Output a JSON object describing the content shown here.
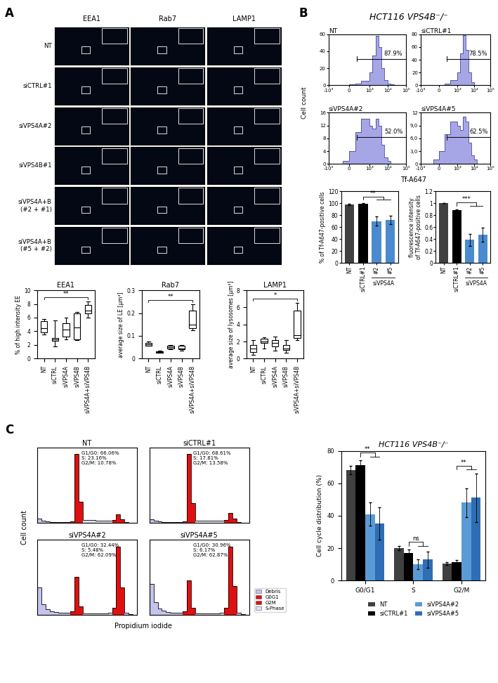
{
  "panel_labels": [
    "A",
    "B",
    "C"
  ],
  "texts": {
    "B_title": "HCT116 VPS4B⁻/⁻",
    "B_ylabel": "Cell count",
    "B_bar_title": "Tf-A647",
    "C_xlabel": "Propidium iodide",
    "C_ylabel": "Cell count"
  },
  "image_grid": {
    "columns": [
      "EEA1",
      "Rab7",
      "LAMP1"
    ],
    "rows": [
      "NT",
      "siCTRL#1",
      "siVPS4A#2",
      "siVPS4B#1",
      "siVPS4A+B\n(#2 + #1)",
      "siVPS4A+B\n(#5 + #2)"
    ]
  },
  "c_hist_legend": [
    {
      "name": "Debris",
      "color": "#c4c4ee"
    },
    {
      "name": "G0G1",
      "color": "#e01010"
    },
    {
      "name": "G2M",
      "color": "#e01010"
    },
    {
      "name": "S-Phase",
      "color": "#dfe4f4"
    }
  ],
  "chart_data": [
    {
      "type": "box",
      "title": "EEA1",
      "ylabel": "% of high intensity EE",
      "color": "#000000",
      "categories": [
        "NT",
        "siCTRL",
        "siVPS4A",
        "siVPS4B",
        "siVPS4A+siVPS4B"
      ],
      "boxes": [
        {
          "whislo": 3.5,
          "q1": 3.8,
          "med": 4.5,
          "q3": 5.5,
          "whishi": 5.8
        },
        {
          "whislo": 1.8,
          "q1": 2.6,
          "med": 2.8,
          "q3": 3.0,
          "whishi": 5.6
        },
        {
          "whislo": 2.8,
          "q1": 3.2,
          "med": 4.2,
          "q3": 5.2,
          "whishi": 6.0
        },
        {
          "whislo": 2.7,
          "q1": 2.8,
          "med": 4.6,
          "q3": 6.6,
          "whishi": 6.8
        },
        {
          "whislo": 6.0,
          "q1": 6.6,
          "med": 7.0,
          "q3": 7.8,
          "whishi": 8.4
        }
      ],
      "ylim": [
        0,
        10
      ],
      "yticks": [
        0,
        2,
        4,
        6,
        8,
        10
      ],
      "significance": {
        "label": "**",
        "from": "NT",
        "to": "siVPS4A+siVPS4B"
      }
    },
    {
      "type": "box",
      "title": "Rab7",
      "ylabel": "average size of LE [µm³]",
      "color": "#000000",
      "categories": [
        "NT",
        "siCTRL",
        "siVPS4A",
        "siVPS4B",
        "siVPS4A+siVPS4B"
      ],
      "boxes": [
        {
          "whislo": 0.055,
          "q1": 0.058,
          "med": 0.063,
          "q3": 0.07,
          "whishi": 0.075
        },
        {
          "whislo": 0.025,
          "q1": 0.027,
          "med": 0.03,
          "q3": 0.032,
          "whishi": 0.034
        },
        {
          "whislo": 0.04,
          "q1": 0.045,
          "med": 0.05,
          "q3": 0.055,
          "whishi": 0.06
        },
        {
          "whislo": 0.035,
          "q1": 0.04,
          "med": 0.045,
          "q3": 0.055,
          "whishi": 0.06
        },
        {
          "whislo": 0.125,
          "q1": 0.135,
          "med": 0.15,
          "q3": 0.21,
          "whishi": 0.24
        }
      ],
      "ylim": [
        0,
        0.3
      ],
      "yticks": [
        0,
        0.1,
        0.2,
        0.3
      ],
      "significance": {
        "label": "**",
        "from": "NT",
        "to": "siVPS4A+siVPS4B"
      }
    },
    {
      "type": "box",
      "title": "LAMP1",
      "ylabel": "average size of lysosomes [µm³]",
      "color": "#000000",
      "categories": [
        "NT",
        "siCTRL",
        "siVPS4A",
        "siVPS4B",
        "siVPS4A+siVPS4B"
      ],
      "boxes": [
        {
          "whislo": 0.4,
          "q1": 0.8,
          "med": 1.2,
          "q3": 1.6,
          "whishi": 2.2
        },
        {
          "whislo": 1.2,
          "q1": 1.8,
          "med": 2.0,
          "q3": 2.3,
          "whishi": 2.5
        },
        {
          "whislo": 0.9,
          "q1": 1.4,
          "med": 1.8,
          "q3": 2.2,
          "whishi": 2.6
        },
        {
          "whislo": 0.7,
          "q1": 1.0,
          "med": 1.2,
          "q3": 1.6,
          "whishi": 2.2
        },
        {
          "whislo": 2.2,
          "q1": 2.4,
          "med": 2.7,
          "q3": 5.6,
          "whishi": 6.5
        }
      ],
      "ylim": [
        0,
        8
      ],
      "yticks": [
        0,
        2,
        4,
        6,
        8
      ],
      "significance": {
        "label": "*",
        "from": "NT",
        "to": "siVPS4A+siVPS4B"
      }
    },
    {
      "type": "histogram",
      "title": "NT",
      "log": "x",
      "color": "#a6a6e6",
      "bins": [
        -1000,
        -300,
        0,
        300,
        600,
        1000,
        1500,
        2200,
        3200,
        4600,
        6800,
        10000,
        15000,
        22000,
        32000,
        46000,
        68000,
        100000
      ],
      "counts": [
        0,
        0,
        1,
        2,
        5,
        15,
        35,
        58,
        45,
        20,
        6,
        2,
        1,
        0,
        0,
        0,
        0
      ],
      "xlim": [
        -1000,
        100000
      ],
      "xticks": [
        {
          "value": -1000,
          "label": "-10³"
        },
        0,
        {
          "value": 1000,
          "label": "10³"
        },
        {
          "value": 10000,
          "label": "10⁴"
        },
        {
          "value": 100000,
          "label": "10⁵"
        }
      ],
      "ylim": [
        0,
        60
      ],
      "yticks": [
        0,
        20,
        40,
        60
      ],
      "gate": [
        400,
        100000
      ],
      "gate_label": "87.9%"
    },
    {
      "type": "histogram",
      "title": "siCTRL#1",
      "log": "x",
      "color": "#a6a6e6",
      "bins": [
        -1000,
        -300,
        0,
        300,
        600,
        1000,
        1500,
        2200,
        3200,
        4600,
        6800,
        10000,
        15000,
        22000,
        32000,
        46000,
        68000,
        100000
      ],
      "counts": [
        0,
        0,
        1,
        3,
        8,
        20,
        50,
        78,
        55,
        20,
        5,
        1,
        0,
        0,
        0,
        0,
        0
      ],
      "xlim": [
        -1000,
        100000
      ],
      "xticks": [
        {
          "value": -1000,
          "label": "-10³"
        },
        0,
        {
          "value": 1000,
          "label": "10³"
        },
        {
          "value": 10000,
          "label": "10⁴"
        },
        {
          "value": 100000,
          "label": "10⁵"
        }
      ],
      "ylim": [
        0,
        80
      ],
      "yticks": [
        0,
        20,
        40,
        60,
        80
      ],
      "gate": [
        400,
        100000
      ],
      "gate_label": "78.5%"
    },
    {
      "type": "histogram",
      "title": "siVPS4A#2",
      "log": "x",
      "color": "#a6a6e6",
      "bins": [
        -1000,
        -300,
        0,
        300,
        600,
        1000,
        1500,
        2200,
        3200,
        4600,
        6800,
        10000,
        15000,
        22000,
        32000,
        46000,
        68000,
        100000
      ],
      "counts": [
        0,
        1,
        4,
        10,
        14,
        12,
        11,
        14,
        12,
        6,
        2,
        1,
        0,
        0,
        0,
        0,
        0
      ],
      "xlim": [
        -1000,
        100000
      ],
      "xticks": [
        {
          "value": -1000,
          "label": "-10³"
        },
        0,
        {
          "value": 1000,
          "label": "10³"
        },
        {
          "value": 10000,
          "label": "10⁴"
        },
        {
          "value": 100000,
          "label": "10⁵"
        }
      ],
      "ylim": [
        0,
        16
      ],
      "yticks": [
        0,
        4,
        8,
        12,
        16
      ],
      "gate": [
        400,
        100000
      ],
      "gate_label": "52.0%"
    },
    {
      "type": "histogram",
      "title": "siVPS4A#5",
      "log": "x",
      "color": "#a6a6e6",
      "bins": [
        -1000,
        -300,
        0,
        300,
        600,
        1000,
        1500,
        2200,
        3200,
        4600,
        6800,
        10000,
        15000,
        22000,
        32000,
        46000,
        68000,
        100000
      ],
      "counts": [
        0,
        1,
        3,
        7,
        10,
        9,
        8,
        11,
        10,
        5,
        2,
        1,
        0,
        0,
        0,
        0,
        0
      ],
      "xlim": [
        -1000,
        100000
      ],
      "xticks": [
        {
          "value": -1000,
          "label": "-10³"
        },
        0,
        {
          "value": 1000,
          "label": "10³"
        },
        {
          "value": 10000,
          "label": "10⁴"
        },
        {
          "value": 100000,
          "label": "10⁵"
        }
      ],
      "ylim": [
        0,
        12
      ],
      "yticks": [
        0,
        {
          "value": 3,
          "label": "3,0"
        },
        {
          "value": 6,
          "label": "6,0"
        },
        {
          "value": 9,
          "label": "9,0"
        },
        12
      ],
      "gate": [
        400,
        100000
      ],
      "gate_label": "62.5%"
    },
    {
      "type": "bar",
      "ylabel": "% of Tf-A647-positive cells",
      "categories": [
        "NT",
        "siCTRL#1",
        "#2",
        "#5"
      ],
      "values": [
        98,
        99,
        70,
        72
      ],
      "errors": [
        1,
        1,
        8,
        7
      ],
      "colors": [
        "#404040",
        "#000000",
        "#4a8bd0",
        "#4a8bd0"
      ],
      "ylim": [
        0,
        120
      ],
      "yticks": [
        0,
        20,
        40,
        60,
        80,
        100,
        120
      ],
      "group_label": {
        "text": "siVPS4A",
        "categories": [
          "#2",
          "#5"
        ]
      },
      "significance": {
        "label": "**",
        "from": "siCTRL#1",
        "to": [
          "#2",
          "#5"
        ]
      }
    },
    {
      "type": "bar",
      "ylabel": "fluorescence intensity\nof Tf-A647-positive cells",
      "categories": [
        "NT",
        "siCTRL#1",
        "#2",
        "#5"
      ],
      "values": [
        1,
        0.88,
        0.39,
        0.47
      ],
      "errors": [
        0,
        0.02,
        0.1,
        0.12
      ],
      "colors": [
        "#404040",
        "#000000",
        "#4a8bd0",
        "#4a8bd0"
      ],
      "ylim": [
        0,
        1.2
      ],
      "yticks": [
        0,
        0.2,
        0.4,
        0.6,
        0.8,
        1,
        1.2
      ],
      "group_label": {
        "text": "siVPS4A",
        "categories": [
          "#2",
          "#5"
        ]
      },
      "significance": {
        "label": "***",
        "from": "siCTRL#1",
        "to": [
          "#2",
          "#5"
        ]
      }
    },
    {
      "type": "histogram",
      "title": "NT",
      "tick_labels": false,
      "annotation": [
        "G1/G0: 66.06%",
        "S: 23.16%",
        "G2/M: 10.78%"
      ],
      "bins": [
        0,
        10,
        20,
        30,
        40,
        50,
        60,
        70,
        80,
        90,
        100,
        110,
        120,
        130,
        140,
        150,
        160,
        170,
        180,
        190,
        200,
        210,
        220,
        230,
        240
      ],
      "counts": [
        6,
        3,
        2,
        1,
        1,
        1,
        1,
        1,
        2,
        100,
        30,
        4,
        4,
        4,
        3,
        3,
        3,
        3,
        4,
        12,
        5,
        1,
        0,
        0
      ],
      "colors": [
        "#c4c4ee",
        "#c4c4ee",
        "#c4c4ee",
        "#c4c4ee",
        "#c4c4ee",
        "#c4c4ee",
        "#c4c4ee",
        "#c4c4ee",
        "#e01010",
        "#e01010",
        "#e01010",
        "#dfe4f4",
        "#dfe4f4",
        "#dfe4f4",
        "#dfe4f4",
        "#dfe4f4",
        "#dfe4f4",
        "#dfe4f4",
        "#e01010",
        "#e01010",
        "#e01010",
        "#c4c4ee",
        "#c4c4ee",
        "#c4c4ee"
      ],
      "xlim": [
        0,
        240
      ],
      "ylim": [
        0,
        110
      ]
    },
    {
      "type": "histogram",
      "title": "siCTRL#1",
      "tick_labels": false,
      "annotation": [
        "G1/G0: 68.61%",
        "S: 17.81%",
        "G2/M: 13.58%"
      ],
      "bins": [
        0,
        10,
        20,
        30,
        40,
        50,
        60,
        70,
        80,
        90,
        100,
        110,
        120,
        130,
        140,
        150,
        160,
        170,
        180,
        190,
        200,
        210,
        220,
        230,
        240
      ],
      "counts": [
        5,
        3,
        2,
        1,
        1,
        1,
        1,
        1,
        2,
        100,
        28,
        3,
        3,
        3,
        3,
        3,
        3,
        3,
        4,
        14,
        6,
        1,
        0,
        0
      ],
      "colors": [
        "#c4c4ee",
        "#c4c4ee",
        "#c4c4ee",
        "#c4c4ee",
        "#c4c4ee",
        "#c4c4ee",
        "#c4c4ee",
        "#c4c4ee",
        "#e01010",
        "#e01010",
        "#e01010",
        "#dfe4f4",
        "#dfe4f4",
        "#dfe4f4",
        "#dfe4f4",
        "#dfe4f4",
        "#dfe4f4",
        "#dfe4f4",
        "#e01010",
        "#e01010",
        "#e01010",
        "#c4c4ee",
        "#c4c4ee",
        "#c4c4ee"
      ],
      "xlim": [
        0,
        240
      ],
      "ylim": [
        0,
        110
      ]
    },
    {
      "type": "histogram",
      "title": "siVPS4A#2",
      "tick_labels": false,
      "annotation": [
        "G1/G0: 32.44%",
        "S: 5.48%",
        "G2/M: 62.09%"
      ],
      "bins": [
        0,
        10,
        20,
        30,
        40,
        50,
        60,
        70,
        80,
        90,
        100,
        110,
        120,
        130,
        140,
        150,
        160,
        170,
        180,
        190,
        200,
        210,
        220,
        230,
        240
      ],
      "counts": [
        40,
        15,
        8,
        5,
        4,
        3,
        3,
        3,
        5,
        55,
        12,
        2,
        2,
        2,
        2,
        2,
        2,
        3,
        10,
        100,
        40,
        3,
        1,
        0
      ],
      "colors": [
        "#c4c4ee",
        "#c4c4ee",
        "#c4c4ee",
        "#c4c4ee",
        "#c4c4ee",
        "#c4c4ee",
        "#c4c4ee",
        "#c4c4ee",
        "#e01010",
        "#e01010",
        "#e01010",
        "#dfe4f4",
        "#dfe4f4",
        "#dfe4f4",
        "#dfe4f4",
        "#dfe4f4",
        "#dfe4f4",
        "#dfe4f4",
        "#e01010",
        "#e01010",
        "#e01010",
        "#c4c4ee",
        "#c4c4ee",
        "#c4c4ee"
      ],
      "xlim": [
        0,
        240
      ],
      "ylim": [
        0,
        110
      ]
    },
    {
      "type": "histogram",
      "title": "siVPS4A#5",
      "tick_labels": false,
      "annotation": [
        "G1/G0: 30.96%",
        "S: 6.17%",
        "G2/M: 62.87%"
      ],
      "bins": [
        0,
        10,
        20,
        30,
        40,
        50,
        60,
        70,
        80,
        90,
        100,
        110,
        120,
        130,
        140,
        150,
        160,
        170,
        180,
        190,
        200,
        210,
        220,
        230,
        240
      ],
      "counts": [
        45,
        18,
        9,
        6,
        4,
        3,
        3,
        3,
        5,
        50,
        10,
        2,
        2,
        2,
        2,
        2,
        2,
        3,
        10,
        100,
        42,
        3,
        1,
        0
      ],
      "colors": [
        "#c4c4ee",
        "#c4c4ee",
        "#c4c4ee",
        "#c4c4ee",
        "#c4c4ee",
        "#c4c4ee",
        "#c4c4ee",
        "#c4c4ee",
        "#e01010",
        "#e01010",
        "#e01010",
        "#dfe4f4",
        "#dfe4f4",
        "#dfe4f4",
        "#dfe4f4",
        "#dfe4f4",
        "#dfe4f4",
        "#dfe4f4",
        "#e01010",
        "#e01010",
        "#e01010",
        "#c4c4ee",
        "#c4c4ee",
        "#c4c4ee"
      ],
      "xlim": [
        0,
        240
      ],
      "ylim": [
        0,
        110
      ]
    },
    {
      "type": "bar",
      "title": "HCT116 VPS4B⁻/⁻",
      "ylabel": "Cell cycle distribution (%)",
      "categories": [
        "G0/G1",
        "S",
        "G2/M"
      ],
      "series": [
        {
          "name": "NT",
          "color": "#404040",
          "values": [
            68,
            20,
            10.5
          ],
          "errors": [
            2.5,
            1.5,
            1
          ]
        },
        {
          "name": "siCTRL#1",
          "color": "#000000",
          "values": [
            71,
            17,
            11.5
          ],
          "errors": [
            3,
            2,
            1
          ]
        },
        {
          "name": "siVPS4A#2",
          "color": "#5b9bd5",
          "values": [
            41,
            10,
            48
          ],
          "errors": [
            7,
            3,
            9
          ]
        },
        {
          "name": "siVPS4A#5",
          "color": "#2f6db5",
          "values": [
            35,
            13,
            51
          ],
          "errors": [
            10,
            5,
            15
          ]
        }
      ],
      "ylim": [
        0,
        80
      ],
      "yticks": [
        0,
        20,
        40,
        60,
        80
      ],
      "legend": "bottom",
      "significance": [
        "**",
        "ns",
        "**"
      ],
      "significance_from": "siCTRL#1",
      "significance_to": [
        "siVPS4A#2",
        "siVPS4A#5"
      ]
    }
  ]
}
